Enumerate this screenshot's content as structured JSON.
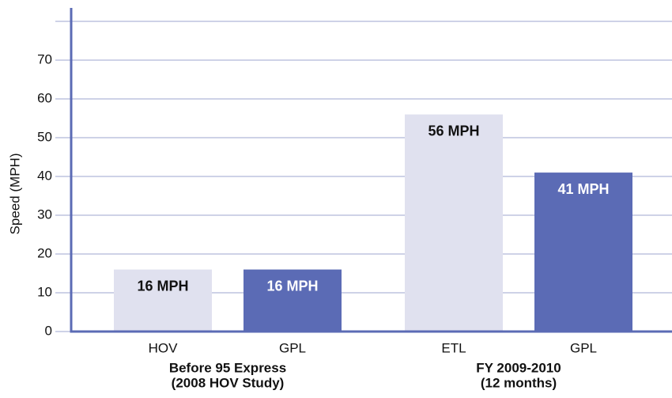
{
  "chart_data": {
    "type": "bar",
    "y_label": "Speed (MPH)",
    "categories": [
      "HOV",
      "GPL",
      "ETL",
      "GPL"
    ],
    "values": [
      16,
      16,
      56,
      41
    ],
    "value_labels": [
      "16 MPH",
      "16 MPH",
      "56 MPH",
      "41 MPH"
    ],
    "colors": [
      "#e0e1ef",
      "#5b6bb5",
      "#e0e1ef",
      "#5b6bb5"
    ],
    "groups": [
      {
        "label": [
          "Before 95 Express",
          "(2008 HOV Study)"
        ]
      },
      {
        "label": [
          "FY 2009-2010",
          "(12 months)"
        ]
      }
    ],
    "ylim": [
      0,
      80
    ],
    "yticks": [
      0,
      10,
      20,
      30,
      40,
      50,
      60,
      70
    ],
    "grid": true
  }
}
